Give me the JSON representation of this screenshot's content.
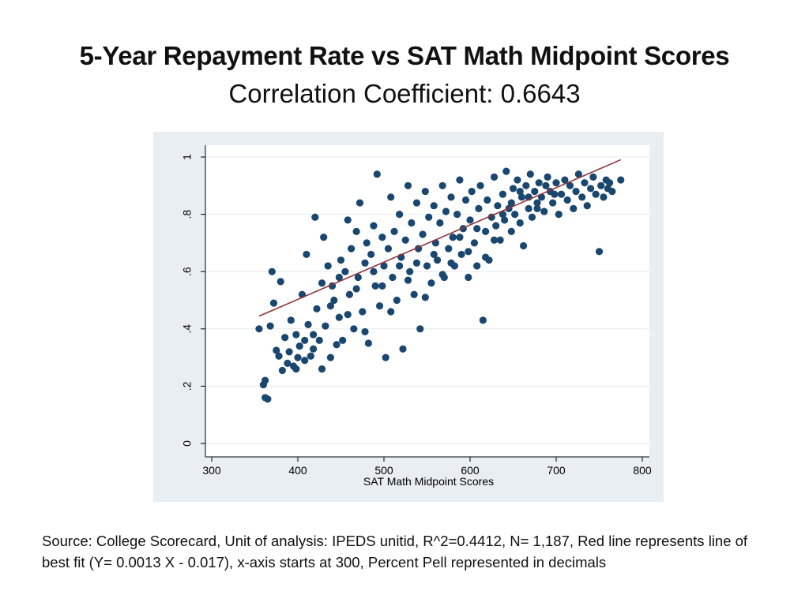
{
  "slide": {
    "title": "5-Year Repayment Rate vs SAT Math Midpoint Scores",
    "subtitle": "Correlation Coefficient: 0.6643",
    "source_note": "Source: College Scorecard, Unit of analysis: IPEDS unitid, R^2=0.4412, N= 1,187, Red line represents line of best fit (Y= 0.0013 X - 0.017), x-axis starts at 300, Percent Pell represented in decimals"
  },
  "colors": {
    "panel_background": "#e9eef3",
    "plot_background": "#ffffff",
    "marker": "#1a476f",
    "fit_line": "#90353b",
    "gridline": "#e6eaee",
    "axis": "#000000"
  },
  "chart_data": {
    "type": "scatter",
    "title": "",
    "xlabel": "SAT Math Midpoint Scores",
    "ylabel": "",
    "xlim": [
      300,
      800
    ],
    "ylim": [
      0,
      1
    ],
    "x_ticks": [
      300,
      400,
      500,
      600,
      700,
      800
    ],
    "x_tick_labels": [
      "300",
      "400",
      "500",
      "600",
      "700",
      "800"
    ],
    "y_ticks": [
      0,
      0.2,
      0.4,
      0.6,
      0.8,
      1
    ],
    "y_tick_labels": [
      "0",
      ".2",
      ".4",
      ".6",
      ".8",
      "1"
    ],
    "grid": true,
    "fit_line": {
      "slope": 0.0013,
      "intercept": -0.017,
      "x_range": [
        355,
        775
      ]
    },
    "points": [
      [
        355,
        0.4
      ],
      [
        360,
        0.205
      ],
      [
        362,
        0.16
      ],
      [
        365,
        0.155
      ],
      [
        368,
        0.41
      ],
      [
        370,
        0.6
      ],
      [
        372,
        0.49
      ],
      [
        375,
        0.325
      ],
      [
        378,
        0.305
      ],
      [
        380,
        0.565
      ],
      [
        382,
        0.255
      ],
      [
        385,
        0.37
      ],
      [
        388,
        0.28
      ],
      [
        390,
        0.32
      ],
      [
        392,
        0.43
      ],
      [
        395,
        0.27
      ],
      [
        398,
        0.38
      ],
      [
        400,
        0.3
      ],
      [
        402,
        0.34
      ],
      [
        405,
        0.52
      ],
      [
        408,
        0.29
      ],
      [
        410,
        0.66
      ],
      [
        412,
        0.415
      ],
      [
        415,
        0.305
      ],
      [
        418,
        0.33
      ],
      [
        420,
        0.79
      ],
      [
        422,
        0.47
      ],
      [
        425,
        0.36
      ],
      [
        428,
        0.56
      ],
      [
        430,
        0.72
      ],
      [
        432,
        0.41
      ],
      [
        435,
        0.62
      ],
      [
        438,
        0.3
      ],
      [
        440,
        0.55
      ],
      [
        442,
        0.5
      ],
      [
        445,
        0.345
      ],
      [
        448,
        0.44
      ],
      [
        450,
        0.64
      ],
      [
        452,
        0.36
      ],
      [
        455,
        0.6
      ],
      [
        458,
        0.78
      ],
      [
        460,
        0.52
      ],
      [
        462,
        0.68
      ],
      [
        465,
        0.4
      ],
      [
        468,
        0.74
      ],
      [
        470,
        0.58
      ],
      [
        472,
        0.84
      ],
      [
        475,
        0.46
      ],
      [
        478,
        0.63
      ],
      [
        480,
        0.7
      ],
      [
        482,
        0.35
      ],
      [
        485,
        0.66
      ],
      [
        488,
        0.76
      ],
      [
        490,
        0.55
      ],
      [
        492,
        0.94
      ],
      [
        495,
        0.48
      ],
      [
        498,
        0.72
      ],
      [
        500,
        0.62
      ],
      [
        502,
        0.3
      ],
      [
        505,
        0.68
      ],
      [
        508,
        0.86
      ],
      [
        510,
        0.58
      ],
      [
        512,
        0.74
      ],
      [
        515,
        0.5
      ],
      [
        518,
        0.8
      ],
      [
        520,
        0.65
      ],
      [
        522,
        0.33
      ],
      [
        525,
        0.71
      ],
      [
        528,
        0.9
      ],
      [
        530,
        0.6
      ],
      [
        532,
        0.77
      ],
      [
        535,
        0.52
      ],
      [
        538,
        0.84
      ],
      [
        540,
        0.68
      ],
      [
        542,
        0.4
      ],
      [
        545,
        0.73
      ],
      [
        548,
        0.88
      ],
      [
        550,
        0.62
      ],
      [
        552,
        0.79
      ],
      [
        555,
        0.56
      ],
      [
        558,
        0.83
      ],
      [
        560,
        0.7
      ],
      [
        562,
        0.64
      ],
      [
        565,
        0.77
      ],
      [
        568,
        0.9
      ],
      [
        570,
        0.58
      ],
      [
        572,
        0.81
      ],
      [
        575,
        0.68
      ],
      [
        578,
        0.86
      ],
      [
        580,
        0.72
      ],
      [
        582,
        0.62
      ],
      [
        585,
        0.8
      ],
      [
        588,
        0.92
      ],
      [
        590,
        0.66
      ],
      [
        592,
        0.75
      ],
      [
        595,
        0.85
      ],
      [
        598,
        0.58
      ],
      [
        600,
        0.78
      ],
      [
        602,
        0.88
      ],
      [
        605,
        0.7
      ],
      [
        608,
        0.62
      ],
      [
        610,
        0.82
      ],
      [
        612,
        0.9
      ],
      [
        615,
        0.43
      ],
      [
        618,
        0.74
      ],
      [
        620,
        0.85
      ],
      [
        622,
        0.64
      ],
      [
        625,
        0.79
      ],
      [
        628,
        0.93
      ],
      [
        630,
        0.76
      ],
      [
        632,
        0.83
      ],
      [
        635,
        0.71
      ],
      [
        638,
        0.87
      ],
      [
        640,
        0.78
      ],
      [
        642,
        0.95
      ],
      [
        645,
        0.82
      ],
      [
        648,
        0.74
      ],
      [
        650,
        0.89
      ],
      [
        652,
        0.8
      ],
      [
        655,
        0.92
      ],
      [
        658,
        0.77
      ],
      [
        660,
        0.86
      ],
      [
        662,
        0.69
      ],
      [
        665,
        0.9
      ],
      [
        668,
        0.82
      ],
      [
        670,
        0.94
      ],
      [
        672,
        0.79
      ],
      [
        675,
        0.88
      ],
      [
        678,
        0.84
      ],
      [
        680,
        0.91
      ],
      [
        683,
        0.86
      ],
      [
        686,
        0.81
      ],
      [
        690,
        0.93
      ],
      [
        693,
        0.88
      ],
      [
        696,
        0.84
      ],
      [
        700,
        0.91
      ],
      [
        703,
        0.8
      ],
      [
        706,
        0.87
      ],
      [
        710,
        0.92
      ],
      [
        713,
        0.85
      ],
      [
        716,
        0.9
      ],
      [
        720,
        0.82
      ],
      [
        723,
        0.88
      ],
      [
        726,
        0.94
      ],
      [
        730,
        0.86
      ],
      [
        733,
        0.91
      ],
      [
        736,
        0.83
      ],
      [
        740,
        0.89
      ],
      [
        743,
        0.93
      ],
      [
        746,
        0.87
      ],
      [
        750,
        0.67
      ],
      [
        752,
        0.9
      ],
      [
        755,
        0.86
      ],
      [
        758,
        0.92
      ],
      [
        760,
        0.89
      ],
      [
        762,
        0.91
      ],
      [
        765,
        0.88
      ],
      [
        775,
        0.92
      ],
      [
        362,
        0.22
      ],
      [
        398,
        0.26
      ],
      [
        408,
        0.36
      ],
      [
        418,
        0.38
      ],
      [
        428,
        0.26
      ],
      [
        438,
        0.48
      ],
      [
        448,
        0.58
      ],
      [
        458,
        0.45
      ],
      [
        468,
        0.54
      ],
      [
        478,
        0.39
      ],
      [
        488,
        0.6
      ],
      [
        498,
        0.55
      ],
      [
        508,
        0.46
      ],
      [
        518,
        0.62
      ],
      [
        528,
        0.57
      ],
      [
        538,
        0.63
      ],
      [
        548,
        0.51
      ],
      [
        558,
        0.66
      ],
      [
        568,
        0.59
      ],
      [
        578,
        0.63
      ],
      [
        588,
        0.72
      ],
      [
        598,
        0.67
      ],
      [
        608,
        0.75
      ],
      [
        618,
        0.65
      ],
      [
        628,
        0.71
      ],
      [
        638,
        0.8
      ],
      [
        648,
        0.84
      ],
      [
        658,
        0.88
      ],
      [
        668,
        0.86
      ],
      [
        678,
        0.82
      ],
      [
        688,
        0.9
      ],
      [
        698,
        0.87
      ]
    ]
  }
}
